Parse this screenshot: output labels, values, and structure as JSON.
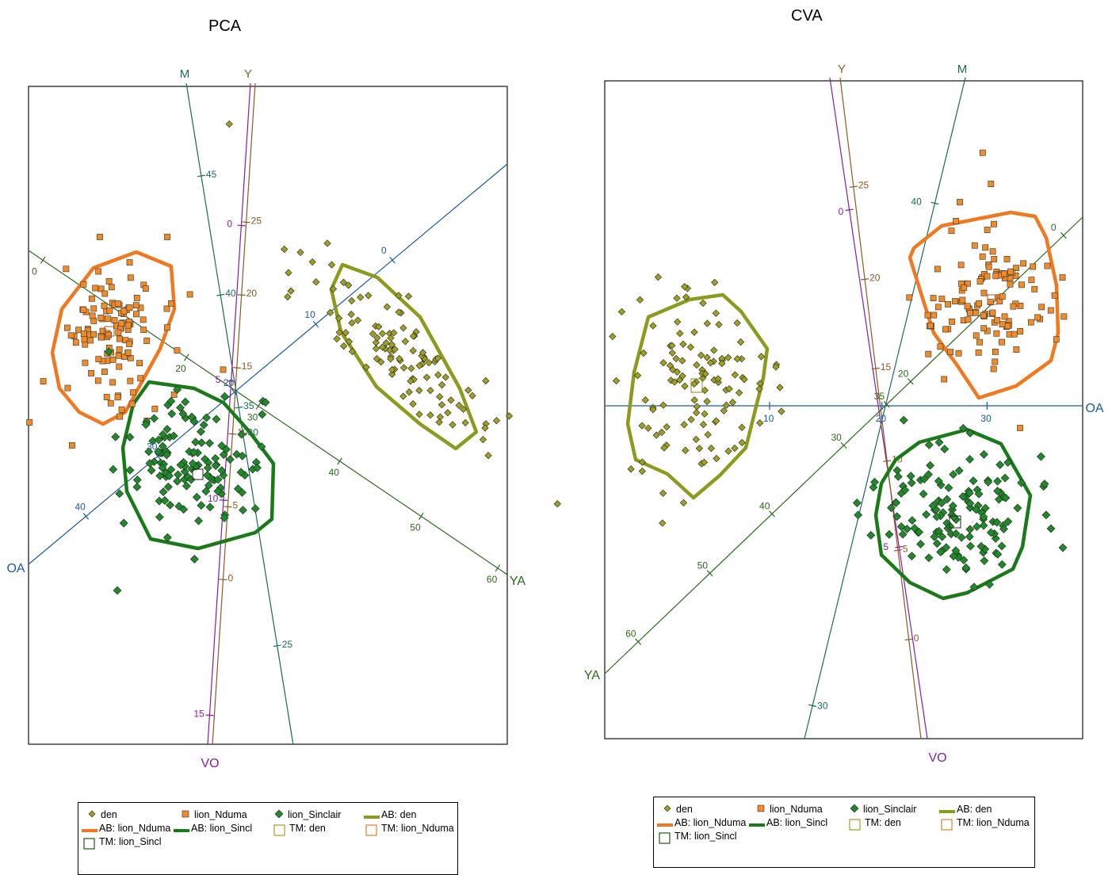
{
  "chart_data": [
    {
      "type": "scatter",
      "title": "PCA",
      "axes": [
        {
          "name": "M",
          "color": "#1a6a5a",
          "ticks": [
            "45",
            "40",
            "35",
            "30",
            "25"
          ]
        },
        {
          "name": "Y",
          "color": "#8a5a20",
          "ticks": [
            "25",
            "20",
            "15",
            "10",
            "5",
            "0"
          ]
        },
        {
          "name": "VO",
          "color": "#8a1aa0",
          "ticks": [
            "0",
            "5",
            "10",
            "15"
          ]
        },
        {
          "name": "OA",
          "color": "#1a5aa0",
          "ticks": [
            "0",
            "10",
            "20",
            "30",
            "40"
          ]
        },
        {
          "name": "YA",
          "color": "#2a6a1a",
          "ticks": [
            "0",
            "20",
            "30",
            "40",
            "50",
            "60"
          ]
        }
      ],
      "series": [
        {
          "name": "den",
          "marker": "diamond",
          "color": "#a0a020"
        },
        {
          "name": "lion_Nduma",
          "marker": "square",
          "color": "#f08c28"
        },
        {
          "name": "lion_Sinclair",
          "marker": "diamond",
          "color": "#208a2a"
        }
      ],
      "hulls": [
        {
          "name": "AB: den",
          "color": "#8c9a1e"
        },
        {
          "name": "AB: lion_Nduma",
          "color": "#f07820"
        },
        {
          "name": "AB: lion_Sincl",
          "color": "#1a7a1a"
        }
      ]
    },
    {
      "type": "scatter",
      "title": "CVA",
      "axes": [
        {
          "name": "Y",
          "color": "#8a5a20",
          "ticks": [
            "25",
            "20",
            "15",
            "10",
            "5",
            "0"
          ]
        },
        {
          "name": "M",
          "color": "#1a6a5a",
          "ticks": [
            "40",
            "30"
          ]
        },
        {
          "name": "VO",
          "color": "#8a1aa0",
          "ticks": [
            "0",
            "5"
          ]
        },
        {
          "name": "OA",
          "color": "#1a5aa0",
          "ticks": [
            "10",
            "20",
            "30"
          ]
        },
        {
          "name": "YA",
          "color": "#2a6a1a",
          "ticks": [
            "0",
            "20",
            "30",
            "35",
            "40",
            "50",
            "60"
          ]
        }
      ],
      "series": [
        {
          "name": "den",
          "marker": "diamond",
          "color": "#a0a020"
        },
        {
          "name": "lion_Nduma",
          "marker": "square",
          "color": "#f08c28"
        },
        {
          "name": "lion_Sinclair",
          "marker": "diamond",
          "color": "#208a2a"
        }
      ],
      "hulls": [
        {
          "name": "AB: den",
          "color": "#8c9a1e"
        },
        {
          "name": "AB: lion_Nduma",
          "color": "#f07820"
        },
        {
          "name": "AB: lion_Sincl",
          "color": "#1a7a1a"
        }
      ]
    }
  ],
  "legend": {
    "items": [
      "den",
      "lion_Nduma",
      "lion_Sinclair",
      "AB: den",
      "AB: lion_Nduma",
      "AB: lion_Sincl",
      "TM: den",
      "TM: lion_Nduma",
      "TM: lion_Sincl"
    ]
  }
}
